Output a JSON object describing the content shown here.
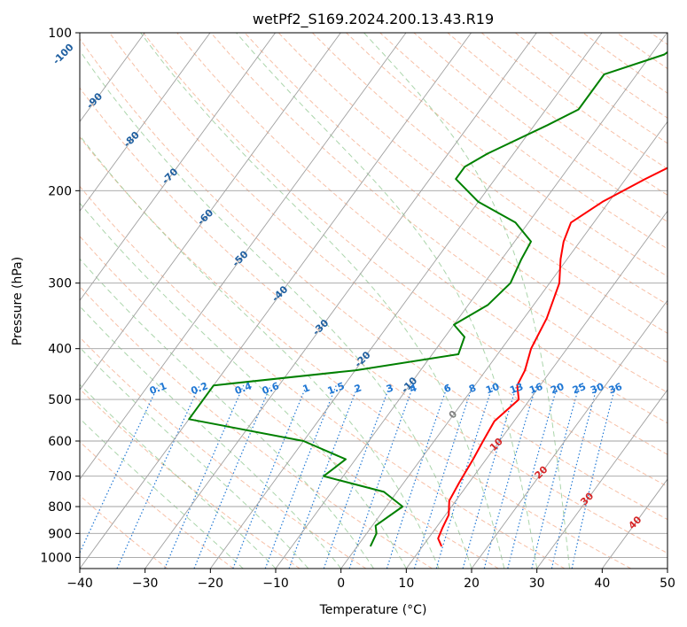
{
  "chart_data": {
    "type": "line",
    "title": "wetPf2_S169.2024.200.13.43.R19",
    "xlabel": "Temperature (°C)",
    "ylabel": "Pressure (hPa)",
    "xlim": [
      -40,
      50
    ],
    "ylim": [
      1050,
      100
    ],
    "y_scale": "log",
    "grid": true,
    "x_ticks": [
      -40,
      -30,
      -20,
      -10,
      0,
      10,
      20,
      30,
      40,
      50
    ],
    "y_ticks": [
      100,
      200,
      300,
      400,
      500,
      600,
      700,
      800,
      900,
      1000
    ],
    "colors": {
      "temperature": "#ff0000",
      "dewpoint": "#008000",
      "isotherm": "#a0a0a0",
      "dry_adiabat": "#f4a582",
      "moist_adiabat": "#8fc78f",
      "mixing_ratio": "#1f77d4",
      "isotherm_label": "#1f5fa0",
      "warm_label": "#d62728",
      "zero_label": "#808080"
    },
    "series": [
      {
        "role": "temperature",
        "points": [
          [
            12.8,
            950
          ],
          [
            11.5,
            920
          ],
          [
            11.0,
            880
          ],
          [
            10.5,
            830
          ],
          [
            9.0,
            780
          ],
          [
            8.5,
            720
          ],
          [
            8.0,
            650
          ],
          [
            7.5,
            600
          ],
          [
            7.0,
            550
          ],
          [
            8.3,
            500
          ],
          [
            6.5,
            470
          ],
          [
            6.0,
            440
          ],
          [
            4.5,
            400
          ],
          [
            3.5,
            350
          ],
          [
            1.5,
            300
          ],
          [
            -1.0,
            270
          ],
          [
            -2.5,
            250
          ],
          [
            -3.5,
            230
          ],
          [
            -1.0,
            210
          ],
          [
            3.0,
            190
          ],
          [
            8.0,
            170
          ],
          [
            11.0,
            150
          ],
          [
            15.0,
            130
          ],
          [
            17.5,
            120
          ],
          [
            19.5,
            110
          ],
          [
            26.0,
            100
          ]
        ]
      },
      {
        "role": "dewpoint",
        "points": [
          [
            2.0,
            950
          ],
          [
            1.5,
            900
          ],
          [
            0.5,
            870
          ],
          [
            2.5,
            800
          ],
          [
            -2.0,
            750
          ],
          [
            -13.0,
            700
          ],
          [
            -11.5,
            650
          ],
          [
            -20.0,
            600
          ],
          [
            -40.0,
            545
          ],
          [
            -40.0,
            470
          ],
          [
            -20.0,
            440
          ],
          [
            -6.0,
            410
          ],
          [
            -7.0,
            380
          ],
          [
            -10.0,
            360
          ],
          [
            -7.0,
            330
          ],
          [
            -6.0,
            300
          ],
          [
            -7.0,
            270
          ],
          [
            -7.5,
            250
          ],
          [
            -12.0,
            230
          ],
          [
            -20.0,
            210
          ],
          [
            -26.0,
            190
          ],
          [
            -26.0,
            180
          ],
          [
            -24.0,
            170
          ],
          [
            -18.0,
            150
          ],
          [
            -15.0,
            140
          ],
          [
            -15.0,
            120
          ],
          [
            -8.0,
            110
          ],
          [
            -6.0,
            100
          ]
        ]
      }
    ],
    "isotherm_labels": [
      "-100",
      "-90",
      "-80",
      "-70",
      "-60",
      "-50",
      "-40",
      "-30",
      "-20",
      "-10"
    ],
    "mixing_ratio_labels": [
      "0.1",
      "0.2",
      "0.4",
      "0.6",
      "1",
      "1.5",
      "2",
      "3",
      "4",
      "6",
      "8",
      "10",
      "13",
      "16",
      "20",
      "25",
      "30",
      "36"
    ],
    "warm_isotherm_labels": [
      "0",
      "10",
      "20",
      "30",
      "40"
    ]
  }
}
